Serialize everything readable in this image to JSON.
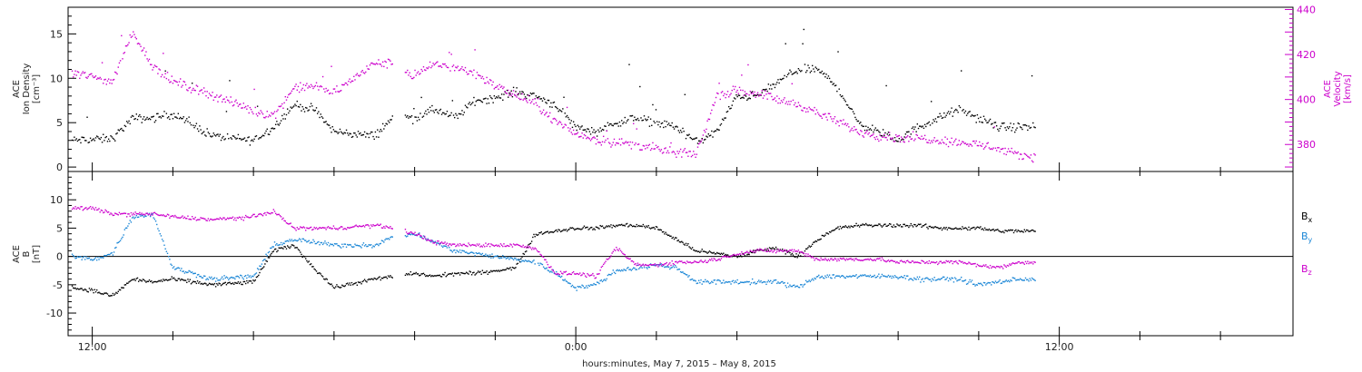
{
  "colors": {
    "density": "#000000",
    "velocity": "#cc00cc",
    "bx": "#000000",
    "by": "#1a86d6",
    "bz": "#cc00cc"
  },
  "chart_data": [
    {
      "type": "scatter",
      "panel": "plasma",
      "ylabel": [
        "ACE",
        "Ion Density",
        "[cm⁻³]"
      ],
      "y2label": [
        "ACE",
        "Velocity",
        "[km/s]"
      ],
      "ylim": [
        -0.5,
        18
      ],
      "y2lim": [
        368,
        441
      ],
      "yticks": [
        0,
        5,
        10,
        15
      ],
      "y2ticks": [
        380,
        400,
        420,
        440
      ],
      "x_ticks": [
        "12:00",
        "0:00",
        "12:00"
      ],
      "x_tick_hours": [
        12,
        24,
        36
      ],
      "xlim_hours": [
        11.4,
        41.8
      ],
      "grid": false,
      "series": [
        {
          "id": "density",
          "axis": "left",
          "x": [
            11.5,
            12.5,
            13.0,
            13.5,
            14.0,
            15.0,
            16.0,
            16.5,
            17.0,
            17.5,
            18.0,
            19.0,
            19.5,
            20.0,
            20.5,
            21.0,
            21.5,
            22.0,
            22.5,
            23.0,
            23.5,
            24.0,
            24.5,
            25.0,
            25.5,
            26.0,
            26.5,
            27.0,
            27.5,
            28.0,
            28.5,
            29.0,
            29.5,
            30.0,
            30.5,
            31.0,
            31.5,
            32.0,
            32.5,
            33.0,
            33.5,
            34.0,
            34.5,
            35.0,
            35.4
          ],
          "y": [
            3.0,
            3.2,
            5.5,
            5.5,
            6.0,
            3.5,
            3.0,
            4.5,
            7.0,
            6.5,
            4.0,
            3.5,
            5.8,
            5.5,
            6.5,
            5.5,
            7.5,
            7.8,
            8.5,
            8.0,
            7.0,
            4.5,
            4.0,
            5.0,
            5.5,
            5.0,
            4.5,
            2.8,
            4.0,
            8.0,
            8.0,
            9.5,
            11.0,
            11.0,
            9.0,
            5.0,
            4.0,
            3.0,
            4.5,
            5.5,
            6.5,
            5.5,
            4.5,
            4.5,
            4.5
          ]
        },
        {
          "id": "velocity",
          "axis": "right",
          "x": [
            11.5,
            12.0,
            12.5,
            13.0,
            13.5,
            14.0,
            15.0,
            16.0,
            16.5,
            17.0,
            17.5,
            18.0,
            19.0,
            19.5,
            20.0,
            20.5,
            21.0,
            21.5,
            22.0,
            22.5,
            23.0,
            23.5,
            24.0,
            24.5,
            25.0,
            25.5,
            26.0,
            26.5,
            27.0,
            27.5,
            28.0,
            28.5,
            29.0,
            29.5,
            30.0,
            30.5,
            31.0,
            31.5,
            32.0,
            32.5,
            33.0,
            33.5,
            34.0,
            34.5,
            35.0,
            35.4
          ],
          "y": [
            412,
            410,
            408,
            430,
            415,
            408,
            402,
            395,
            393,
            405,
            406,
            403,
            416,
            416,
            410,
            416,
            414,
            412,
            406,
            402,
            398,
            390,
            385,
            382,
            381,
            380,
            378,
            376,
            376,
            402,
            404,
            403,
            400,
            398,
            394,
            390,
            386,
            384,
            383,
            383,
            382,
            381,
            380,
            378,
            375,
            375
          ]
        }
      ]
    },
    {
      "type": "scatter",
      "panel": "magnetic-field",
      "ylabel": [
        "ACE",
        "B",
        "[nT]"
      ],
      "ylim": [
        -14,
        15
      ],
      "yticks": [
        -10,
        -5,
        0,
        5,
        10
      ],
      "zero_line": true,
      "x_ticks": [
        "12:00",
        "0:00",
        "12:00"
      ],
      "x_tick_hours": [
        12,
        24,
        36
      ],
      "xlim_hours": [
        11.4,
        41.8
      ],
      "legend": [
        "Bx",
        "By",
        "Bz"
      ],
      "legend_placement": "right",
      "xlabel": "hours:minutes,  May  7, 2015 – May  8, 2015",
      "series": [
        {
          "id": "bx",
          "name": "Bx",
          "x": [
            11.5,
            12.0,
            12.5,
            13.0,
            13.5,
            14.0,
            15.0,
            16.0,
            16.5,
            17.0,
            17.5,
            18.0,
            19.0,
            19.5,
            20.0,
            20.5,
            21.0,
            21.5,
            22.0,
            22.5,
            23.0,
            23.5,
            24.0,
            24.5,
            25.0,
            25.5,
            26.0,
            26.5,
            27.0,
            27.5,
            28.0,
            28.5,
            29.0,
            29.5,
            30.0,
            30.5,
            31.0,
            31.5,
            32.0,
            32.5,
            33.0,
            33.5,
            34.0,
            34.5,
            35.0,
            35.4
          ],
          "y": [
            -5.5,
            -6.0,
            -7.0,
            -4.0,
            -4.5,
            -4.0,
            -5.0,
            -4.5,
            1.0,
            2.0,
            -2.0,
            -5.5,
            -4.0,
            -3.5,
            -3.0,
            -3.5,
            -3.0,
            -3.0,
            -2.5,
            -2.0,
            4.0,
            4.5,
            5.0,
            5.0,
            5.5,
            5.5,
            5.0,
            3.0,
            1.0,
            0.5,
            0.0,
            1.0,
            1.5,
            0.0,
            3.0,
            5.0,
            5.5,
            5.5,
            5.5,
            5.5,
            5.0,
            5.0,
            5.0,
            4.5,
            4.5,
            4.5
          ]
        },
        {
          "id": "by",
          "name": "By",
          "x": [
            11.5,
            12.0,
            12.5,
            13.0,
            13.5,
            14.0,
            15.0,
            16.0,
            16.5,
            17.0,
            17.5,
            18.0,
            19.0,
            19.5,
            20.0,
            20.5,
            21.0,
            21.5,
            22.0,
            22.5,
            23.0,
            23.5,
            24.0,
            24.5,
            25.0,
            25.5,
            26.0,
            26.5,
            27.0,
            27.5,
            28.0,
            28.5,
            29.0,
            29.5,
            30.0,
            30.5,
            31.0,
            31.5,
            32.0,
            32.5,
            33.0,
            33.5,
            34.0,
            34.5,
            35.0,
            35.4
          ],
          "y": [
            0.0,
            -0.5,
            0.5,
            7.0,
            7.5,
            -2.0,
            -4.0,
            -3.5,
            2.0,
            3.0,
            2.5,
            2.0,
            2.0,
            3.5,
            4.0,
            2.5,
            1.0,
            0.5,
            0.0,
            -0.5,
            -1.0,
            -3.0,
            -5.5,
            -5.0,
            -2.5,
            -2.0,
            -1.5,
            -2.0,
            -4.5,
            -4.5,
            -4.5,
            -4.5,
            -4.5,
            -5.5,
            -3.5,
            -3.5,
            -3.5,
            -3.5,
            -3.5,
            -4.0,
            -4.0,
            -4.0,
            -5.0,
            -4.5,
            -4.0,
            -4.0
          ]
        },
        {
          "id": "bz",
          "name": "Bz",
          "x": [
            11.5,
            12.0,
            12.5,
            13.0,
            13.5,
            14.0,
            15.0,
            16.0,
            16.5,
            17.0,
            17.5,
            18.0,
            19.0,
            19.5,
            20.0,
            20.5,
            21.0,
            21.5,
            22.0,
            22.5,
            23.0,
            23.5,
            24.0,
            24.5,
            25.0,
            25.5,
            26.0,
            26.5,
            27.0,
            27.5,
            28.0,
            28.5,
            29.0,
            29.5,
            30.0,
            30.5,
            31.0,
            31.5,
            32.0,
            32.5,
            33.0,
            33.5,
            34.0,
            34.5,
            35.0,
            35.4
          ],
          "y": [
            8.5,
            8.5,
            7.5,
            7.5,
            7.5,
            7.0,
            6.5,
            7.0,
            8.0,
            5.0,
            5.0,
            5.0,
            5.5,
            5.0,
            4.0,
            2.5,
            2.0,
            2.0,
            2.0,
            2.0,
            1.5,
            -3.0,
            -3.0,
            -3.5,
            1.5,
            -1.5,
            -1.5,
            -1.0,
            -1.0,
            -0.5,
            0.5,
            1.0,
            1.0,
            1.0,
            -0.5,
            -0.5,
            -0.5,
            -0.5,
            -1.0,
            -1.0,
            -1.0,
            -1.0,
            -1.5,
            -2.0,
            -1.0,
            -1.0
          ]
        }
      ]
    }
  ],
  "legend_labels": {
    "bx": {
      "main": "B",
      "sub": "x"
    },
    "by": {
      "main": "B",
      "sub": "y"
    },
    "bz": {
      "main": "B",
      "sub": "z"
    }
  },
  "x_axis_title": "hours:minutes,  May  7, 2015 – May  8, 2015"
}
